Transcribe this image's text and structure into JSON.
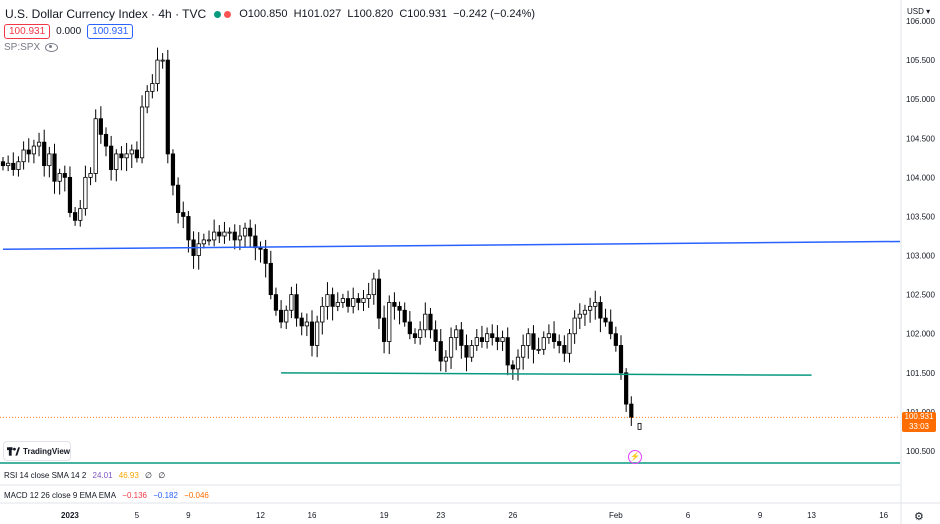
{
  "header": {
    "title": "U.S. Dollar Currency Index · 4h · TVC",
    "ohlc": {
      "o": "O100.850",
      "h": "H101.027",
      "l": "L100.820",
      "c": "C100.931",
      "chg": "−0.242 (−0.24%)"
    },
    "bid": "100.931",
    "spread": "0.000",
    "ask": "100.931",
    "compare": "SP:SPX"
  },
  "logo_text": "TradingView",
  "indicators": {
    "rsi": {
      "label": "RSI 14 close SMA 14 2",
      "v1": "24.01",
      "v2": "46.93",
      "v3": "∅",
      "v4": "∅"
    },
    "macd": {
      "label": "MACD 12 26 close 9 EMA EMA",
      "v1": "−0.136",
      "v2": "−0.182",
      "v3": "−0.046"
    }
  },
  "price_axis": {
    "currency": "USD",
    "current": "100.931",
    "countdown": "33:03"
  },
  "colors": {
    "up": "#ffffff",
    "down": "#000000",
    "trend_blue": "#2962ff",
    "support_green": "#089981",
    "accent_orange": "#ff6d00"
  },
  "chart_data": {
    "type": "candlestick",
    "title": "U.S. Dollar Currency Index",
    "timeframe": "4h",
    "ylim": [
      100.5,
      106.0
    ],
    "y_ticks": [
      "106.000",
      "105.500",
      "105.000",
      "104.500",
      "104.000",
      "103.500",
      "103.000",
      "102.500",
      "102.000",
      "101.500",
      "101.000",
      "100.500"
    ],
    "x_ticks": [
      {
        "label": "2023",
        "slot": 13
      },
      {
        "label": "5",
        "slot": 26
      },
      {
        "label": "9",
        "slot": 36
      },
      {
        "label": "12",
        "slot": 50
      },
      {
        "label": "16",
        "slot": 60
      },
      {
        "label": "19",
        "slot": 74
      },
      {
        "label": "23",
        "slot": 85
      },
      {
        "label": "26",
        "slot": 99
      },
      {
        "label": "Feb",
        "slot": 119
      },
      {
        "label": "6",
        "slot": 133
      },
      {
        "label": "9",
        "slot": 147
      },
      {
        "label": "13",
        "slot": 157
      },
      {
        "label": "16",
        "slot": 171
      }
    ],
    "close_series": [
      104.15,
      104.18,
      104.1,
      104.2,
      104.35,
      104.3,
      104.4,
      104.45,
      104.15,
      104.3,
      103.95,
      104.05,
      104.0,
      103.55,
      103.45,
      103.6,
      104.0,
      104.05,
      104.75,
      104.55,
      104.4,
      104.1,
      104.3,
      104.25,
      104.3,
      104.35,
      104.25,
      104.9,
      105.1,
      105.2,
      105.5,
      105.5,
      104.3,
      103.9,
      103.55,
      103.5,
      103.2,
      103.0,
      103.15,
      103.2,
      103.2,
      103.3,
      103.25,
      103.3,
      103.3,
      103.2,
      103.25,
      103.35,
      103.25,
      103.1,
      103.08,
      102.9,
      102.5,
      102.3,
      102.15,
      102.3,
      102.5,
      102.2,
      102.1,
      102.15,
      101.85,
      102.15,
      102.35,
      102.5,
      102.35,
      102.4,
      102.45,
      102.35,
      102.45,
      102.4,
      102.45,
      102.5,
      102.7,
      102.2,
      101.9,
      102.4,
      102.35,
      102.3,
      102.15,
      102.0,
      101.95,
      102.05,
      102.25,
      102.05,
      101.9,
      101.65,
      101.7,
      101.95,
      102.05,
      101.85,
      101.7,
      101.85,
      101.95,
      101.9,
      102.0,
      101.95,
      101.9,
      101.95,
      101.6,
      101.55,
      101.7,
      101.85,
      102.0,
      101.8,
      101.8,
      101.95,
      102.0,
      101.9,
      101.85,
      101.75,
      102.0,
      102.2,
      102.25,
      102.3,
      102.35,
      102.4,
      102.2,
      102.15,
      102.0,
      101.85,
      101.5,
      101.1,
      100.93
    ],
    "series": [
      {
        "name": "Trendline",
        "type": "line",
        "x": [
          0,
          188
        ],
        "y": [
          103.08,
          103.18
        ]
      },
      {
        "name": "Support",
        "type": "line",
        "x": [
          54,
          157
        ],
        "y": [
          101.5,
          101.47
        ]
      },
      {
        "name": "Last price",
        "type": "hline",
        "y": [
          100.931
        ]
      }
    ]
  }
}
